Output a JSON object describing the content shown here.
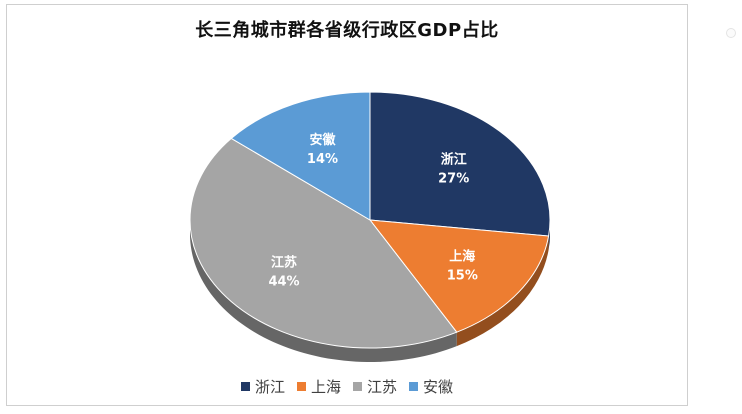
{
  "chart_data": {
    "type": "pie",
    "title": "长三角城市群各省级行政区GDP占比",
    "categories": [
      "浙江",
      "上海",
      "江苏",
      "安徽"
    ],
    "values": [
      27,
      15,
      44,
      14
    ],
    "labels": [
      "27%",
      "15%",
      "44%",
      "14%"
    ],
    "colors": [
      "#203864",
      "#ED7D31",
      "#A5A5A5",
      "#5B9BD5"
    ],
    "legend": "bottom",
    "style": "3d"
  }
}
